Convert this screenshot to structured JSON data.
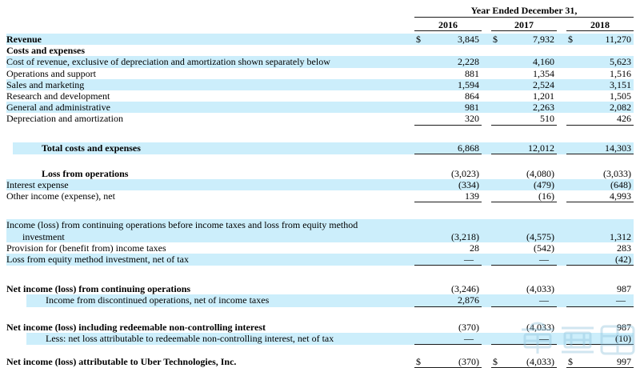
{
  "header": {
    "title": "Year Ended December 31,",
    "years": [
      "2016",
      "2017",
      "2018"
    ]
  },
  "colors": {
    "row_highlight": "#cceefb",
    "rule": "#1a1a1a",
    "watermark": "#8fc3dc"
  },
  "watermark": {
    "text": "车东西"
  },
  "table": {
    "rows": [
      {
        "label": "Revenue",
        "bold": true,
        "hl": true,
        "dollar": true,
        "values": [
          "3,845",
          "7,932",
          "11,270"
        ],
        "ul": 0,
        "ind": 0
      },
      {
        "label": "Costs and expenses",
        "bold": true,
        "hl": false,
        "values": null,
        "ind": 0
      },
      {
        "label": "Cost of revenue, exclusive of depreciation and amortization shown separately below",
        "hl": true,
        "values": [
          "2,228",
          "4,160",
          "5,623"
        ],
        "ind": 0
      },
      {
        "label": "Operations and support",
        "hl": false,
        "values": [
          "881",
          "1,354",
          "1,516"
        ],
        "ind": 0
      },
      {
        "label": "Sales and marketing",
        "hl": true,
        "values": [
          "1,594",
          "2,524",
          "3,151"
        ],
        "ind": 0
      },
      {
        "label": "Research and development",
        "hl": false,
        "values": [
          "864",
          "1,201",
          "1,505"
        ],
        "ind": 0
      },
      {
        "label": "General and administrative",
        "hl": true,
        "values": [
          "981",
          "2,263",
          "2,082"
        ],
        "ind": 0
      },
      {
        "label": "Depreciation and amortization",
        "hl": false,
        "values": [
          "320",
          "510",
          "426"
        ],
        "ul": 1,
        "ind": 0
      },
      {
        "spacer": 21
      },
      {
        "label": "Total costs and expenses",
        "bold": true,
        "hl": true,
        "values": [
          "6,868",
          "12,012",
          "14,303"
        ],
        "ul": 1,
        "ind": 2
      },
      {
        "spacer": 17
      },
      {
        "label": "Loss from operations",
        "bold": true,
        "hl": false,
        "values": [
          "(3,023)",
          "(4,080)",
          "(3,033)"
        ],
        "ind": 2
      },
      {
        "label": "Interest expense",
        "hl": true,
        "values": [
          "(334)",
          "(479)",
          "(648)"
        ],
        "ind": 0
      },
      {
        "label": "Other income (expense), net",
        "hl": false,
        "values": [
          "139",
          "(16)",
          "4,993"
        ],
        "ul": 1,
        "ind": 0
      },
      {
        "spacer": 21
      },
      {
        "label": "Income (loss) from continuing operations before income taxes and loss from equity method",
        "hl": true,
        "values": null,
        "ind": 0
      },
      {
        "label": "investment",
        "hl": true,
        "values": [
          "(3,218)",
          "(4,575)",
          "1,312"
        ],
        "ind": 1
      },
      {
        "label": "Provision for (benefit from) income taxes",
        "hl": false,
        "values": [
          "28",
          "(542)",
          "283"
        ],
        "ind": 0
      },
      {
        "label": "Loss from equity method investment, net of tax",
        "hl": true,
        "values": [
          "—",
          "—",
          "(42)"
        ],
        "ul": 1,
        "ind": 0
      },
      {
        "spacer": 22
      },
      {
        "label": "Net income (loss) from continuing operations",
        "bold": true,
        "hl": false,
        "values": [
          "(3,246)",
          "(4,033)",
          "987"
        ],
        "ind": 0
      },
      {
        "label": "Income from discontinued operations, net of income taxes",
        "hl": true,
        "values": [
          "2,876",
          "—",
          "—"
        ],
        "ul": 1,
        "ind": 3
      },
      {
        "spacer": 18
      },
      {
        "label": "Net income (loss) including redeemable non-controlling interest",
        "bold": true,
        "hl": false,
        "values": [
          "(370)",
          "(4,033)",
          "987"
        ],
        "ind": 0
      },
      {
        "label": "Less: net loss attributable to redeemable non-controlling interest, net of tax",
        "hl": true,
        "values": [
          "—",
          "—",
          "(10)"
        ],
        "ul": 1,
        "ind": 3
      },
      {
        "spacer": 14
      },
      {
        "label": "Net income (loss) attributable to Uber Technologies, Inc.",
        "bold": true,
        "hl": false,
        "dollar": true,
        "values": [
          "(370)",
          "(4,033)",
          "997"
        ],
        "ul": 2,
        "ind": 0
      }
    ]
  }
}
